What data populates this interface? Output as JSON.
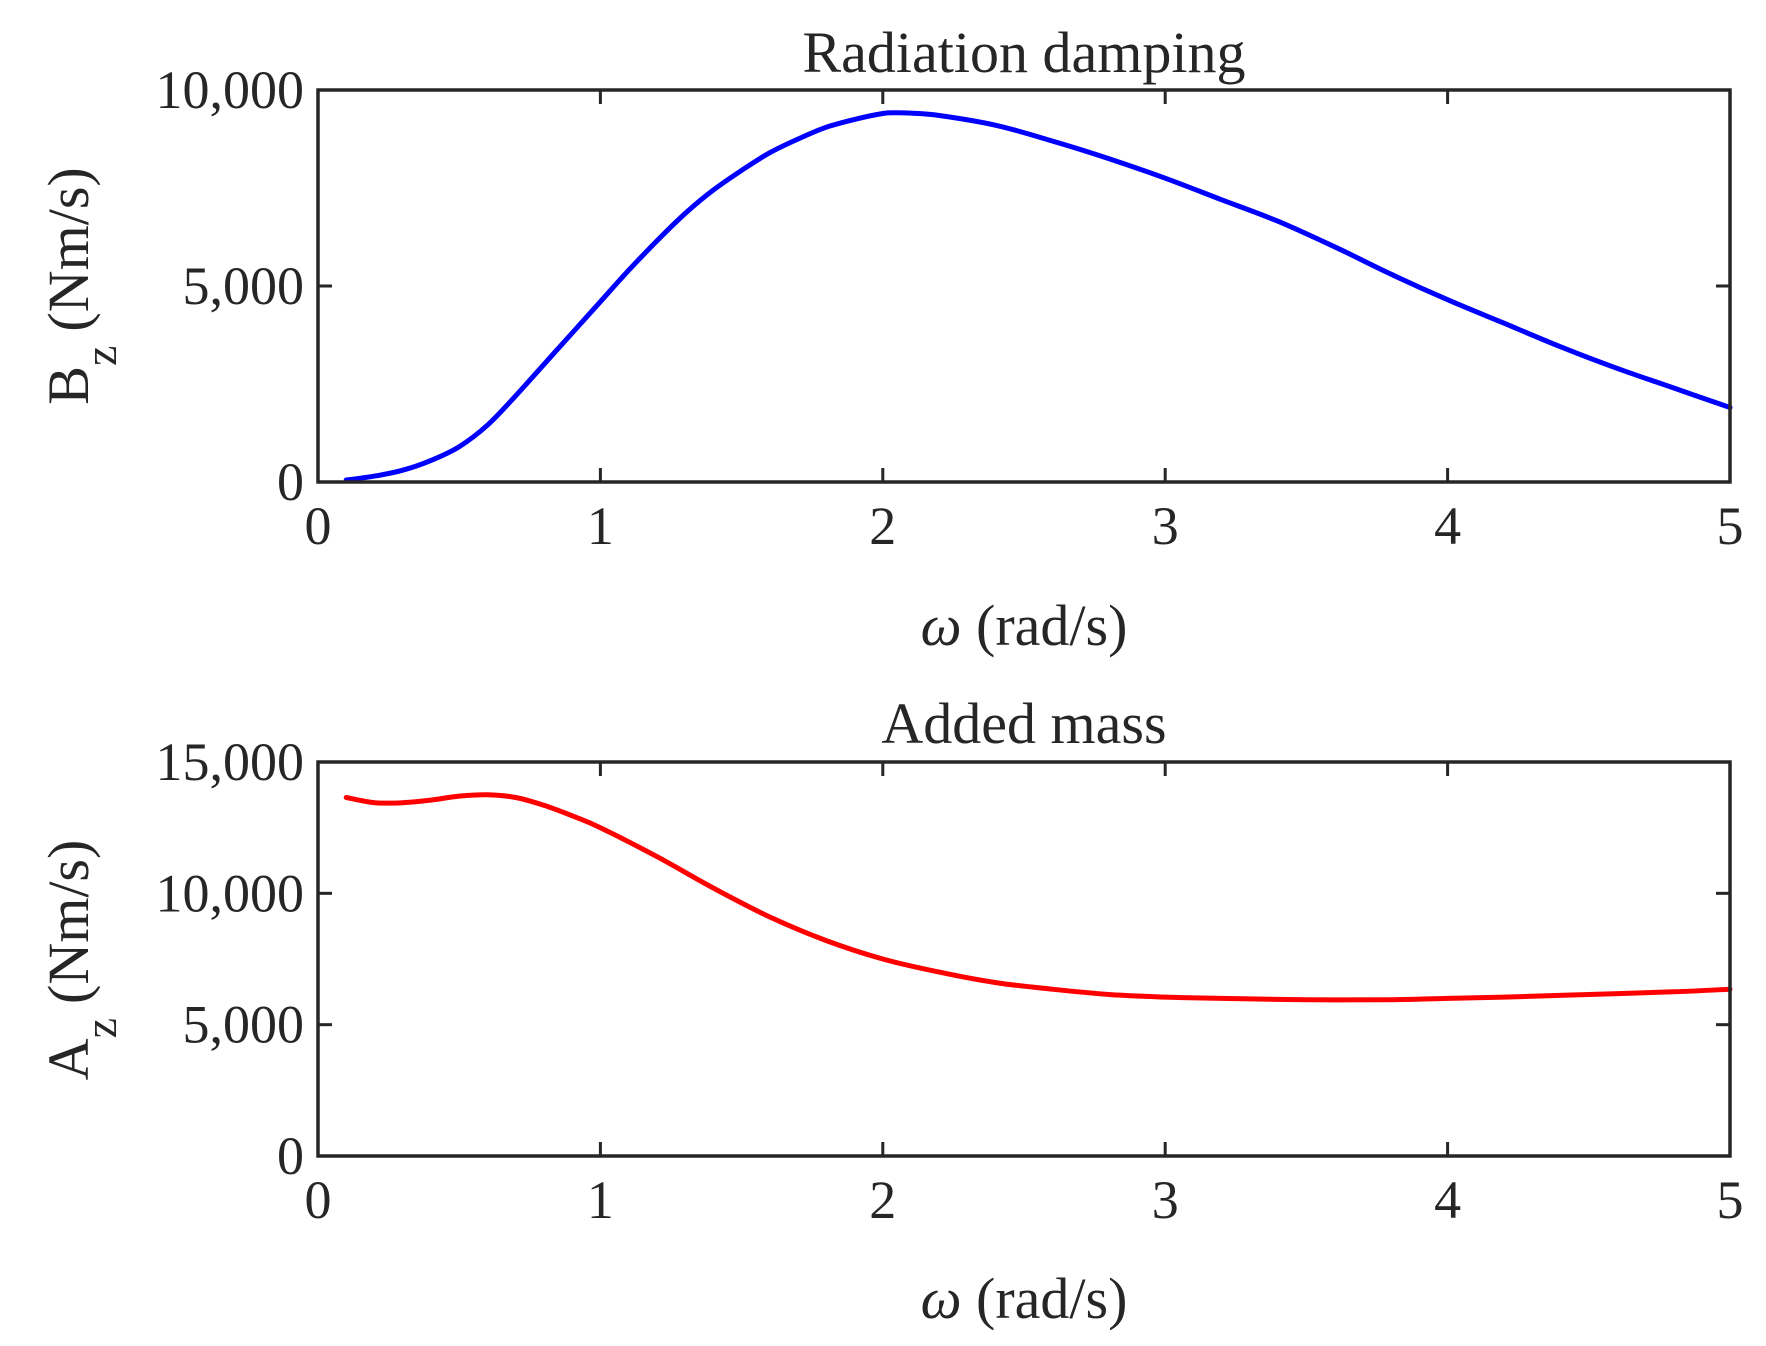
{
  "chart_data": [
    {
      "type": "line",
      "title": "Radiation damping",
      "xlabel_symbol": "ω",
      "xlabel_unit": "(rad/s)",
      "ylabel_main": "B",
      "ylabel_sub": "z",
      "ylabel_unit": "(Nm/s)",
      "xlim": [
        0,
        5
      ],
      "ylim": [
        0,
        10000
      ],
      "xticks": [
        0,
        1,
        2,
        3,
        4,
        5
      ],
      "xtick_labels": [
        "0",
        "1",
        "2",
        "3",
        "4",
        "5"
      ],
      "yticks": [
        0,
        5000,
        10000
      ],
      "ytick_labels": [
        "0",
        "5,000",
        "10,000"
      ],
      "grid": false,
      "series": [
        {
          "name": "B_z",
          "color": "#0000ff",
          "x": [
            0.1,
            0.2,
            0.3,
            0.4,
            0.5,
            0.6,
            0.7,
            0.8,
            0.9,
            1.0,
            1.1,
            1.2,
            1.3,
            1.4,
            1.5,
            1.6,
            1.7,
            1.8,
            1.9,
            2.0,
            2.05,
            2.1,
            2.2,
            2.4,
            2.6,
            2.8,
            3.0,
            3.2,
            3.4,
            3.6,
            3.8,
            4.0,
            4.2,
            4.4,
            4.6,
            4.8,
            5.0
          ],
          "y": [
            50,
            150,
            300,
            550,
            900,
            1450,
            2200,
            3000,
            3800,
            4600,
            5400,
            6150,
            6850,
            7450,
            7950,
            8400,
            8750,
            9050,
            9250,
            9400,
            9420,
            9410,
            9350,
            9100,
            8700,
            8250,
            7750,
            7200,
            6650,
            6000,
            5300,
            4650,
            4050,
            3450,
            2900,
            2400,
            1900
          ]
        }
      ]
    },
    {
      "type": "line",
      "title": "Added mass",
      "xlabel_symbol": "ω",
      "xlabel_unit": "(rad/s)",
      "ylabel_main": "A",
      "ylabel_sub": "z",
      "ylabel_unit": "(Nm/s)",
      "xlim": [
        0,
        5
      ],
      "ylim": [
        0,
        15000
      ],
      "xticks": [
        0,
        1,
        2,
        3,
        4,
        5
      ],
      "xtick_labels": [
        "0",
        "1",
        "2",
        "3",
        "4",
        "5"
      ],
      "yticks": [
        0,
        5000,
        10000,
        15000
      ],
      "ytick_labels": [
        "0",
        "5,000",
        "10,000",
        "15,000"
      ],
      "grid": false,
      "series": [
        {
          "name": "A_z",
          "color": "#ff0000",
          "x": [
            0.1,
            0.2,
            0.3,
            0.4,
            0.5,
            0.6,
            0.7,
            0.8,
            0.9,
            1.0,
            1.2,
            1.4,
            1.6,
            1.8,
            2.0,
            2.2,
            2.4,
            2.6,
            2.8,
            3.0,
            3.2,
            3.5,
            3.8,
            4.0,
            4.2,
            4.5,
            4.8,
            5.0
          ],
          "y": [
            13650,
            13450,
            13450,
            13550,
            13700,
            13750,
            13650,
            13350,
            12950,
            12500,
            11400,
            10200,
            9100,
            8200,
            7500,
            7000,
            6600,
            6350,
            6150,
            6050,
            6000,
            5950,
            5950,
            6000,
            6050,
            6150,
            6250,
            6350
          ]
        }
      ]
    }
  ]
}
